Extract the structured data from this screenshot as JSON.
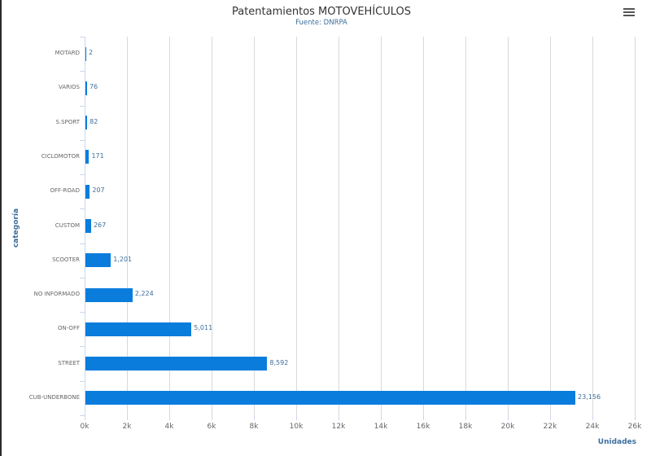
{
  "header": {
    "title": "Patentamientos MOTOVEHÍCULOS",
    "subtitle": "Fuente: DNRPA",
    "menu_icon": "hamburger-menu-icon"
  },
  "axes": {
    "x_title": "Unidades",
    "y_title": "categoría",
    "x_ticks": [
      "0k",
      "2k",
      "4k",
      "6k",
      "8k",
      "10k",
      "12k",
      "14k",
      "16k",
      "18k",
      "20k",
      "22k",
      "24k",
      "26k"
    ]
  },
  "colors": {
    "bar": "#0a7ddc",
    "label": "#3d6e9c"
  },
  "bars": [
    {
      "category": "MOTARD",
      "value": 2,
      "label": "2"
    },
    {
      "category": "VARIOS",
      "value": 76,
      "label": "76"
    },
    {
      "category": "S.SPORT",
      "value": 82,
      "label": "82"
    },
    {
      "category": "CICLOMOTOR",
      "value": 171,
      "label": "171"
    },
    {
      "category": "OFF-ROAD",
      "value": 207,
      "label": "207"
    },
    {
      "category": "CUSTOM",
      "value": 267,
      "label": "267"
    },
    {
      "category": "SCOOTER",
      "value": 1201,
      "label": "1,201"
    },
    {
      "category": "NO INFORMADO",
      "value": 2224,
      "label": "2,224"
    },
    {
      "category": "ON-OFF",
      "value": 5011,
      "label": "5,011"
    },
    {
      "category": "STREET",
      "value": 8592,
      "label": "8,592"
    },
    {
      "category": "CUB-UNDERBONE",
      "value": 23156,
      "label": "23,156"
    }
  ],
  "chart_data": {
    "type": "bar",
    "orientation": "horizontal",
    "title": "Patentamientos MOTOVEHÍCULOS",
    "subtitle": "Fuente: DNRPA",
    "xlabel": "Unidades",
    "ylabel": "categoría",
    "categories": [
      "MOTARD",
      "VARIOS",
      "S.SPORT",
      "CICLOMOTOR",
      "OFF-ROAD",
      "CUSTOM",
      "SCOOTER",
      "NO INFORMADO",
      "ON-OFF",
      "STREET",
      "CUB-UNDERBONE"
    ],
    "values": [
      2,
      76,
      82,
      171,
      207,
      267,
      1201,
      2224,
      5011,
      8592,
      23156
    ],
    "xlim": [
      0,
      26000
    ],
    "x_tick_labels": [
      "0k",
      "2k",
      "4k",
      "6k",
      "8k",
      "10k",
      "12k",
      "14k",
      "16k",
      "18k",
      "20k",
      "22k",
      "24k",
      "26k"
    ],
    "grid": true,
    "data_labels": true,
    "legend": false
  }
}
